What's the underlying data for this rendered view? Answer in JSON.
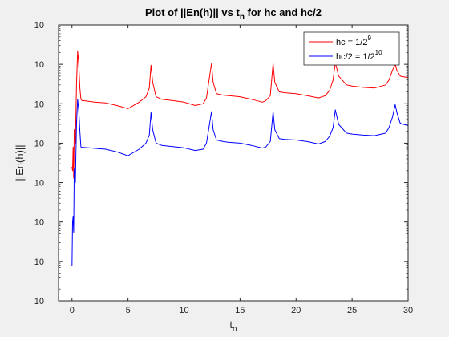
{
  "chart_data": {
    "type": "line",
    "title_main": "Plot of ||En(h)|| vs t",
    "title_sub": "n",
    "title_tail": " for hc and hc/2",
    "xlabel_main": "t",
    "xlabel_sub": "n",
    "ylabel": "||En(h)||",
    "xlim": [
      -1.2,
      30
    ],
    "ylim_exp": [
      -14,
      -7
    ],
    "y_scale": "log",
    "x_ticks": [
      0,
      5,
      10,
      15,
      20,
      25,
      30
    ],
    "x_tick_labels": [
      "0",
      "5",
      "10",
      "15",
      "20",
      "25",
      "30"
    ],
    "y_tick_exponents": [
      "-14",
      "-13",
      "-12",
      "-11",
      "-10",
      "-9",
      "-8",
      "-7"
    ],
    "y_tick_base": "10",
    "grid": false,
    "legend_position": "top-right",
    "series": [
      {
        "name_main": "hc = 1/2",
        "name_sup": "9",
        "color": "#ff0000",
        "x": [
          0.0,
          0.05,
          0.1,
          0.15,
          0.2,
          0.3,
          0.4,
          0.5,
          0.6,
          0.7,
          0.8,
          0.9,
          1.0,
          1.5,
          2,
          3,
          4,
          5,
          6,
          6.6,
          6.9,
          7.05,
          7.2,
          7.5,
          8,
          9,
          10,
          11,
          11.7,
          12.0,
          12.45,
          12.6,
          12.9,
          13.5,
          14,
          15,
          16,
          17,
          17.3,
          17.7,
          17.95,
          18.1,
          18.5,
          19,
          20,
          21,
          22,
          22.6,
          23.0,
          23.3,
          23.5,
          23.8,
          24.5,
          25,
          26,
          27,
          28,
          28.3,
          28.6,
          28.85,
          29.0,
          29.3,
          29.6,
          30
        ],
        "y": [
          2.5e-11,
          2e-11,
          8e-11,
          1.3e-11,
          2.2e-10,
          1e-10,
          3e-09,
          2.2e-08,
          1e-08,
          2.5e-09,
          1.3e-09,
          1.2e-09,
          1.2e-09,
          1.15e-09,
          1.1e-09,
          1.05e-09,
          9e-10,
          7.5e-10,
          1.1e-09,
          1.5e-09,
          2.5e-09,
          9.5e-09,
          3.5e-09,
          1.5e-09,
          1.3e-09,
          1.2e-09,
          1.1e-09,
          9e-10,
          1e-09,
          1.4e-09,
          1.05e-08,
          3.5e-09,
          1.8e-09,
          1.65e-09,
          1.6e-09,
          1.5e-09,
          1.3e-09,
          1.1e-09,
          1.2e-09,
          1.6e-09,
          1.05e-08,
          3.5e-09,
          2e-09,
          1.9e-09,
          1.8e-09,
          1.6e-09,
          1.4e-09,
          1.6e-09,
          2.2e-09,
          4e-09,
          1.1e-08,
          5e-09,
          3e-09,
          2.8e-09,
          2.6e-09,
          2.5e-09,
          3e-09,
          4e-09,
          7e-09,
          1e-08,
          7e-09,
          5e-09,
          4.8e-09,
          4.6e-09
        ]
      },
      {
        "name_main": "hc/2 = 1/2",
        "name_sup": "10",
        "color": "#0000ff",
        "x": [
          0.0,
          0.05,
          0.1,
          0.15,
          0.2,
          0.3,
          0.4,
          0.5,
          0.6,
          0.7,
          0.8,
          0.9,
          1.0,
          1.5,
          2,
          3,
          4,
          5,
          6,
          6.6,
          6.9,
          7.05,
          7.2,
          7.5,
          8,
          9,
          10,
          11,
          11.7,
          12.0,
          12.45,
          12.6,
          12.9,
          13.5,
          14,
          15,
          16,
          17,
          17.3,
          17.7,
          17.95,
          18.1,
          18.5,
          19,
          20,
          21,
          22,
          22.6,
          23.0,
          23.3,
          23.5,
          23.8,
          24.5,
          25,
          26,
          27,
          28,
          28.3,
          28.6,
          28.85,
          29.0,
          29.3,
          29.6,
          30
        ],
        "y": [
          7.5e-14,
          1e-12,
          1.4e-12,
          5.5e-13,
          2.2e-11,
          1e-11,
          3e-10,
          1.3e-09,
          7e-10,
          2e-10,
          8e-11,
          7.8e-11,
          7.8e-11,
          7.6e-11,
          7.4e-11,
          7e-11,
          6e-11,
          4.8e-11,
          7e-11,
          1e-10,
          1.6e-10,
          6e-10,
          2.2e-10,
          1e-10,
          8.8e-11,
          8.2e-11,
          7.6e-11,
          6.5e-11,
          7e-11,
          1e-10,
          6.3e-10,
          2.2e-10,
          1.2e-10,
          1.1e-10,
          1.05e-10,
          1e-10,
          8.8e-11,
          7.5e-11,
          8e-11,
          1.1e-10,
          6.3e-10,
          2.2e-10,
          1.3e-10,
          1.25e-10,
          1.2e-10,
          1.1e-10,
          9.5e-11,
          1.1e-10,
          1.5e-10,
          2.5e-10,
          7e-10,
          3e-10,
          1.8e-10,
          1.7e-10,
          1.6e-10,
          1.55e-10,
          1.8e-10,
          2.5e-10,
          4.5e-10,
          9.5e-10,
          6e-10,
          3.2e-10,
          3e-10,
          2.8e-10
        ]
      }
    ]
  }
}
